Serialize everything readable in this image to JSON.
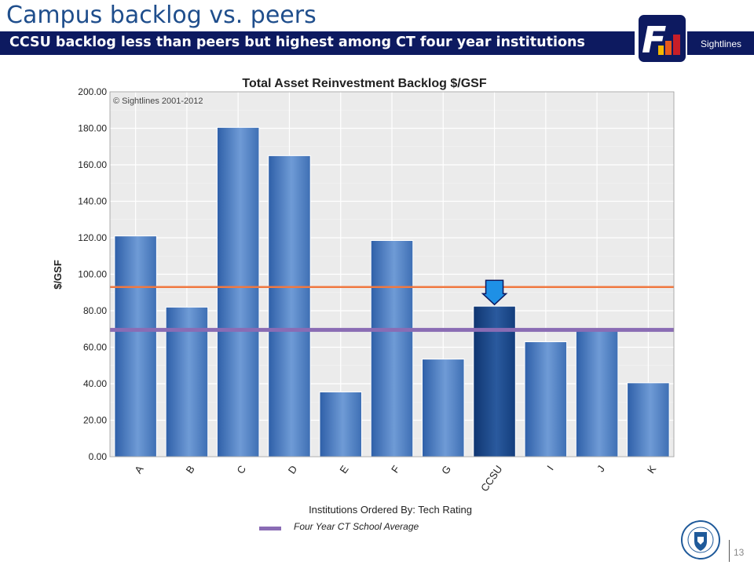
{
  "slide": {
    "title": "Campus backlog vs. peers",
    "subtitle": "CCSU backlog less than peers but highest among CT four year institutions",
    "logo_text": "Sightlines",
    "page_number": "13"
  },
  "legend": {
    "label": "Four Year CT School Average"
  },
  "colors": {
    "banner": "#0d1a60",
    "bar": "#4a7cc0",
    "highlight_bar": "#1a4a8a",
    "orange_line": "#f07840",
    "purple_line": "#8a6cb4",
    "arrow": "#1e90e6"
  },
  "chart_data": {
    "type": "bar",
    "title": "Total Asset Reinvestment Backlog $/GSF",
    "watermark": "© Sightlines 2001-2012",
    "xlabel": "Institutions Ordered By: Tech Rating",
    "ylabel": "$/GSF",
    "categories": [
      "A",
      "B",
      "C",
      "D",
      "E",
      "F",
      "G",
      "CCSU",
      "I",
      "J",
      "K"
    ],
    "values": [
      121,
      82,
      180.5,
      165,
      35.5,
      118.5,
      53.5,
      82.5,
      63,
      69.5,
      40.5
    ],
    "highlight": "CCSU",
    "ylim": [
      0,
      200
    ],
    "yticks": [
      "0.00",
      "20.00",
      "40.00",
      "60.00",
      "80.00",
      "100.00",
      "120.00",
      "140.00",
      "160.00",
      "180.00",
      "200.00"
    ],
    "reference_lines": [
      {
        "value": 93,
        "color": "orange"
      },
      {
        "value": 69.5,
        "color": "purple",
        "label": "Four Year CT School Average"
      }
    ],
    "grid": true
  }
}
